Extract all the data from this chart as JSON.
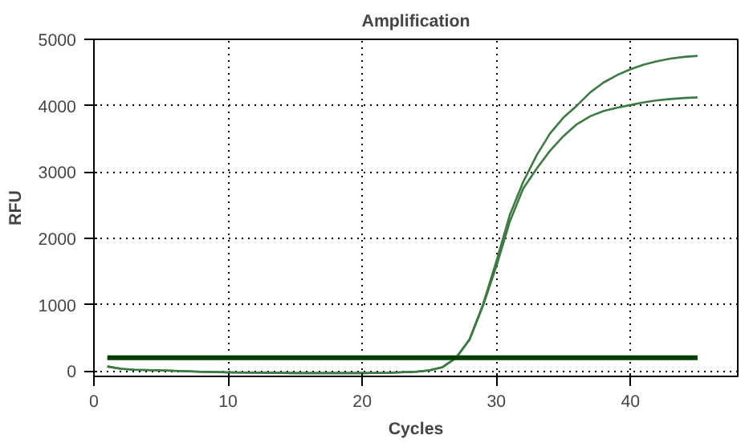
{
  "chart_data": {
    "type": "line",
    "title": "Amplification",
    "xlabel": "Cycles",
    "ylabel": "RFU",
    "xlim": [
      0,
      48
    ],
    "xticks": [
      0,
      10,
      20,
      30,
      40
    ],
    "ylim": [
      -80,
      5000
    ],
    "yticks": [
      0,
      1000,
      2000,
      3000,
      4000,
      5000
    ],
    "grid": true,
    "line_style": "solid",
    "series": [
      {
        "color": "#3f7a45",
        "x": [
          1,
          2,
          3,
          5,
          8,
          10,
          15,
          20,
          22,
          24,
          25,
          26,
          27,
          28,
          29,
          30,
          31,
          32,
          33,
          34,
          35,
          36,
          37,
          38,
          39,
          40,
          41,
          42,
          43,
          44,
          45
        ],
        "values": [
          70,
          35,
          20,
          10,
          -10,
          -20,
          -30,
          -30,
          -25,
          -10,
          10,
          60,
          200,
          480,
          1000,
          1650,
          2350,
          2850,
          3250,
          3580,
          3820,
          4000,
          4200,
          4350,
          4460,
          4550,
          4620,
          4670,
          4710,
          4735,
          4750
        ]
      },
      {
        "color": "#3f7a45",
        "x": [
          1,
          2,
          3,
          5,
          8,
          10,
          15,
          20,
          22,
          24,
          25,
          26,
          27,
          28,
          29,
          30,
          31,
          32,
          33,
          34,
          35,
          36,
          37,
          38,
          39,
          40,
          41,
          42,
          43,
          44,
          45
        ],
        "values": [
          70,
          35,
          20,
          10,
          -10,
          -20,
          -30,
          -30,
          -25,
          -10,
          10,
          60,
          200,
          470,
          980,
          1580,
          2250,
          2750,
          3050,
          3320,
          3540,
          3720,
          3840,
          3920,
          3970,
          4010,
          4050,
          4080,
          4100,
          4115,
          4125
        ]
      },
      {
        "color": "#004000",
        "x": [
          1,
          45
        ],
        "values": [
          200,
          200
        ]
      }
    ]
  }
}
